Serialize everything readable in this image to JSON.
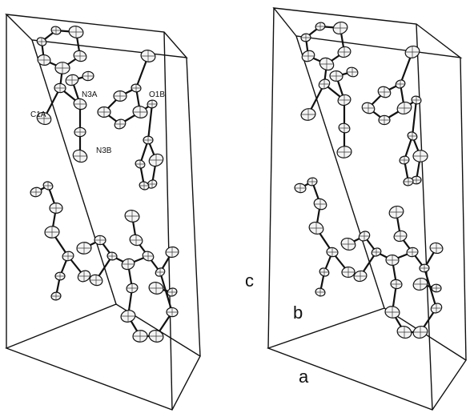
{
  "atom_labels": [
    "N3A",
    "O1B",
    "C1A",
    "N3B"
  ],
  "axis_labels": [
    "c",
    "b",
    "a"
  ]
}
